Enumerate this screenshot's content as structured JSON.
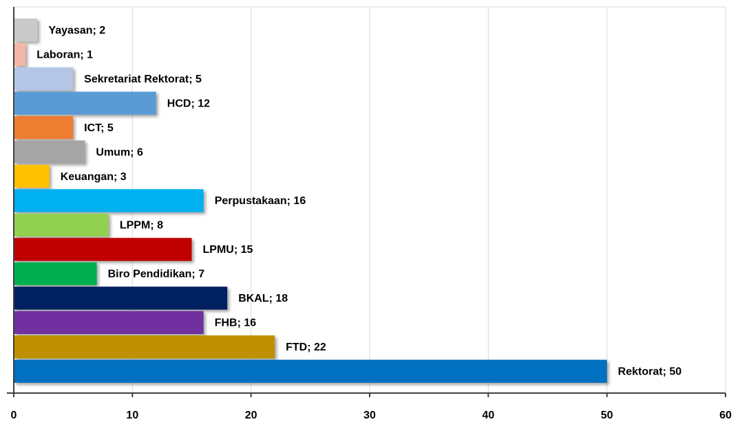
{
  "chart_data": {
    "type": "barh",
    "values": [
      2,
      1,
      5,
      12,
      5,
      6,
      3,
      16,
      8,
      15,
      7,
      18,
      16,
      22,
      50
    ],
    "value_labels": [
      "Yayasan; 2",
      "Laboran; 1",
      "Sekretariat Rektorat; 5",
      "HCD; 12",
      "ICT; 5",
      "Umum; 6",
      "Keuangan; 3",
      "Perpustakaan; 16",
      "LPPM; 8",
      "LPMU; 15",
      "Biro Pendidikan; 7",
      "BKAL; 18",
      "FHB; 16",
      "FTD; 22",
      "Rektorat; 50"
    ],
    "colors": [
      "#c9c9c9",
      "#f4b6a6",
      "#b4c7e7",
      "#5b9bd5",
      "#ed7d31",
      "#a5a5a5",
      "#ffc000",
      "#00b0f0",
      "#92d050",
      "#c00000",
      "#00b050",
      "#002060",
      "#7030a0",
      "#bf9000",
      "#0070c0"
    ],
    "xlim": [
      0,
      60
    ],
    "xticks": [
      0,
      10,
      20,
      30,
      40,
      50,
      60
    ],
    "grid": true
  }
}
